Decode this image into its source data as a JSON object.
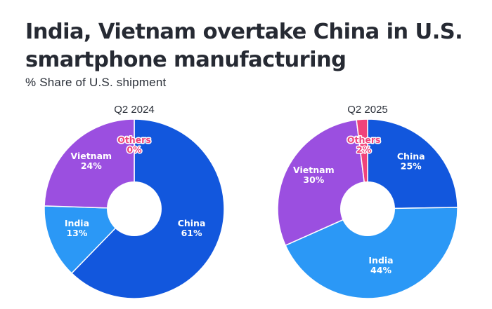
{
  "title": "India, Vietnam overtake China in U.S. smartphone manufacturing",
  "subtitle": "% Share of U.S. shipment",
  "colors": {
    "China": "#1257dd",
    "India": "#2b98f6",
    "Vietnam": "#9b4fe0",
    "Others": "#f0437a"
  },
  "chart_data": [
    {
      "type": "pie",
      "title": "Q2 2024",
      "slices": [
        {
          "label": "China",
          "value": 61,
          "display": "61%"
        },
        {
          "label": "India",
          "value": 13,
          "display": "13%"
        },
        {
          "label": "Vietnam",
          "value": 24,
          "display": "24%"
        },
        {
          "label": "Others",
          "value": 0,
          "display": "0%"
        }
      ],
      "donut": true
    },
    {
      "type": "pie",
      "title": "Q2 2025",
      "slices": [
        {
          "label": "China",
          "value": 25,
          "display": "25%"
        },
        {
          "label": "India",
          "value": 44,
          "display": "44%"
        },
        {
          "label": "Vietnam",
          "value": 30,
          "display": "30%"
        },
        {
          "label": "Others",
          "value": 2,
          "display": "2%"
        }
      ],
      "donut": true
    }
  ]
}
